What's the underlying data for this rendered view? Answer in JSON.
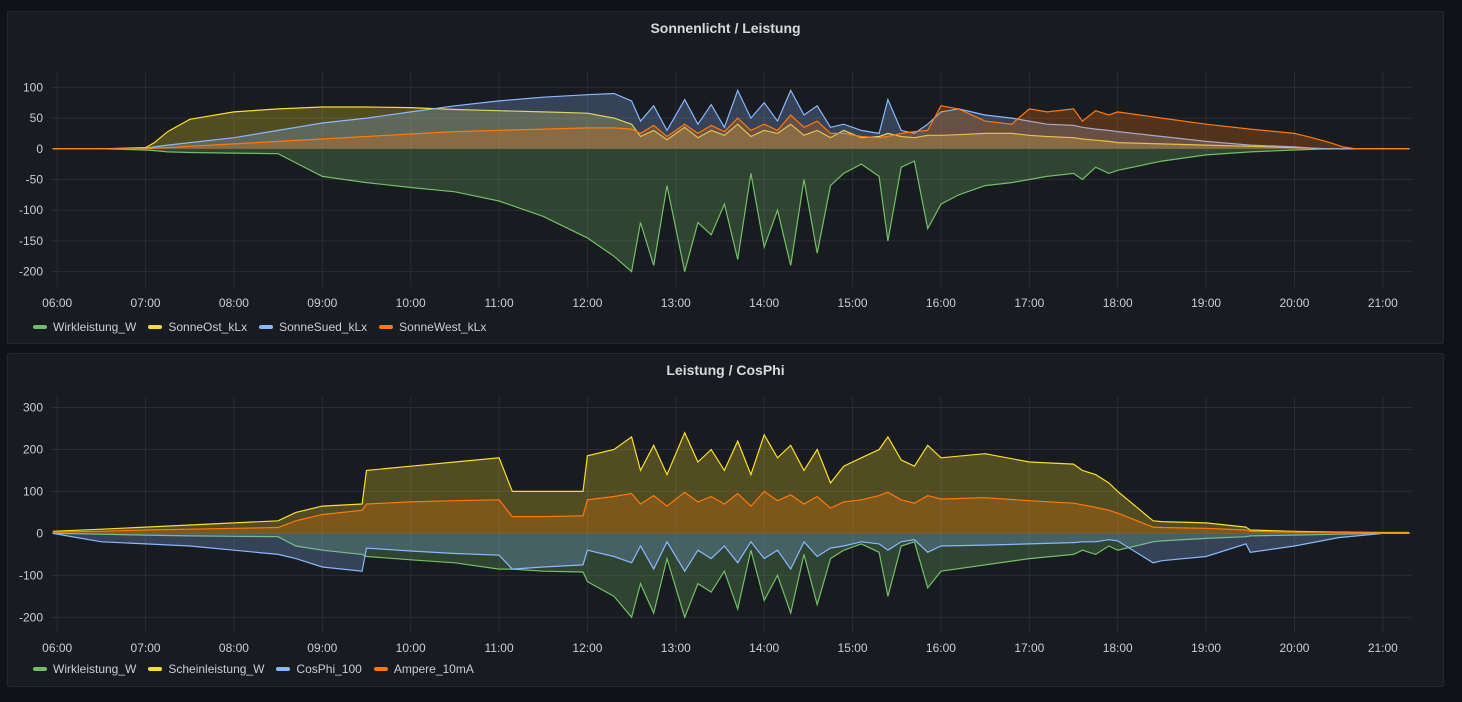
{
  "colors": {
    "green": "#73bf69",
    "yellow": "#fade2a",
    "blue": "#8ab8ff",
    "orange": "#ff780a",
    "grid": "#2a2d33",
    "background": "#111217",
    "panel": "#181b1f"
  },
  "chart_data": [
    {
      "type": "area",
      "title": "Sonnenlicht / Leistung",
      "x_ticks": [
        "06:00",
        "07:00",
        "08:00",
        "09:00",
        "10:00",
        "11:00",
        "12:00",
        "13:00",
        "14:00",
        "15:00",
        "16:00",
        "17:00",
        "18:00",
        "19:00",
        "20:00",
        "21:00"
      ],
      "xlim": [
        5.93,
        21.33
      ],
      "y_ticks": [
        100,
        50,
        0,
        -50,
        -100,
        -150,
        -200
      ],
      "ylim": [
        -225,
        125
      ],
      "x": [
        5.95,
        6.5,
        7.0,
        7.1,
        7.25,
        7.5,
        8.0,
        8.5,
        9.0,
        9.5,
        10.0,
        10.5,
        11.0,
        11.5,
        12.0,
        12.3,
        12.5,
        12.6,
        12.75,
        12.9,
        13.1,
        13.25,
        13.4,
        13.55,
        13.7,
        13.85,
        14.0,
        14.15,
        14.3,
        14.45,
        14.6,
        14.75,
        14.9,
        15.1,
        15.3,
        15.4,
        15.55,
        15.7,
        15.85,
        16.0,
        16.2,
        16.5,
        16.8,
        17.0,
        17.2,
        17.5,
        17.6,
        17.75,
        17.9,
        18.0,
        18.5,
        19.0,
        19.5,
        20.0,
        20.2,
        20.4,
        20.55,
        20.7,
        21.0,
        21.3
      ],
      "series": [
        {
          "name": "Wirkleistung_W",
          "color": "#73bf69",
          "values": [
            0,
            0,
            -2,
            -3,
            -5,
            -6,
            -7,
            -8,
            -45,
            -55,
            -63,
            -70,
            -85,
            -110,
            -145,
            -175,
            -200,
            -120,
            -190,
            -60,
            -200,
            -120,
            -140,
            -90,
            -180,
            -40,
            -160,
            -100,
            -190,
            -50,
            -170,
            -60,
            -40,
            -25,
            -45,
            -150,
            -30,
            -20,
            -130,
            -90,
            -75,
            -60,
            -55,
            -50,
            -45,
            -40,
            -50,
            -30,
            -40,
            -35,
            -20,
            -10,
            -5,
            -2,
            -1,
            0,
            0,
            0,
            0,
            0
          ]
        },
        {
          "name": "SonneOst_kLx",
          "color": "#fade2a",
          "values": [
            0,
            0,
            2,
            10,
            28,
            48,
            60,
            65,
            68,
            68,
            67,
            64,
            62,
            60,
            58,
            50,
            40,
            20,
            30,
            15,
            35,
            18,
            30,
            22,
            40,
            20,
            30,
            25,
            40,
            22,
            30,
            18,
            30,
            18,
            20,
            25,
            20,
            18,
            22,
            22,
            23,
            25,
            25,
            22,
            20,
            18,
            16,
            14,
            12,
            10,
            8,
            6,
            4,
            2,
            1,
            0,
            0,
            0,
            0,
            0
          ]
        },
        {
          "name": "SonneSued_kLx",
          "color": "#8ab8ff",
          "values": [
            0,
            0,
            1,
            3,
            6,
            10,
            18,
            30,
            42,
            50,
            60,
            70,
            78,
            84,
            88,
            90,
            78,
            45,
            70,
            30,
            80,
            40,
            72,
            35,
            95,
            50,
            75,
            45,
            95,
            55,
            70,
            35,
            40,
            30,
            25,
            80,
            30,
            25,
            40,
            60,
            65,
            55,
            50,
            45,
            40,
            38,
            35,
            32,
            30,
            28,
            20,
            12,
            6,
            3,
            1,
            0,
            0,
            0,
            0,
            0
          ]
        },
        {
          "name": "SonneWest_kLx",
          "color": "#ff780a",
          "values": [
            0,
            0,
            0,
            1,
            2,
            4,
            8,
            12,
            16,
            20,
            24,
            28,
            30,
            32,
            34,
            34,
            32,
            25,
            38,
            20,
            40,
            25,
            38,
            28,
            50,
            30,
            40,
            30,
            55,
            35,
            45,
            25,
            25,
            20,
            18,
            20,
            25,
            28,
            30,
            70,
            65,
            45,
            40,
            65,
            60,
            65,
            45,
            62,
            55,
            60,
            50,
            40,
            32,
            25,
            18,
            10,
            3,
            0,
            0,
            0
          ]
        }
      ]
    },
    {
      "type": "area",
      "title": "Leistung / CosPhi",
      "x_ticks": [
        "06:00",
        "07:00",
        "08:00",
        "09:00",
        "10:00",
        "11:00",
        "12:00",
        "13:00",
        "14:00",
        "15:00",
        "16:00",
        "17:00",
        "18:00",
        "19:00",
        "20:00",
        "21:00"
      ],
      "xlim": [
        5.93,
        21.33
      ],
      "y_ticks": [
        300,
        200,
        100,
        0,
        -100,
        -200
      ],
      "ylim": [
        -235,
        325
      ],
      "x": [
        5.95,
        6.5,
        7.0,
        7.5,
        8.0,
        8.5,
        8.7,
        9.0,
        9.45,
        9.5,
        10.0,
        10.5,
        11.0,
        11.15,
        11.5,
        11.95,
        12.0,
        12.3,
        12.5,
        12.6,
        12.75,
        12.9,
        13.1,
        13.25,
        13.4,
        13.55,
        13.7,
        13.85,
        14.0,
        14.15,
        14.3,
        14.45,
        14.6,
        14.75,
        14.9,
        15.1,
        15.3,
        15.4,
        15.55,
        15.7,
        15.85,
        16.0,
        16.5,
        17.0,
        17.5,
        17.6,
        17.75,
        17.9,
        18.0,
        18.4,
        18.5,
        19.0,
        19.45,
        19.5,
        20.0,
        20.5,
        21.0,
        21.3
      ],
      "series": [
        {
          "name": "Wirkleistung_W",
          "color": "#73bf69",
          "values": [
            0,
            -2,
            -4,
            -6,
            -7,
            -8,
            -30,
            -40,
            -50,
            -55,
            -63,
            -70,
            -85,
            -85,
            -90,
            -92,
            -115,
            -150,
            -200,
            -120,
            -190,
            -60,
            -200,
            -120,
            -140,
            -90,
            -180,
            -40,
            -160,
            -100,
            -190,
            -50,
            -170,
            -60,
            -40,
            -25,
            -45,
            -150,
            -30,
            -20,
            -130,
            -90,
            -75,
            -60,
            -50,
            -40,
            -50,
            -30,
            -40,
            -20,
            -18,
            -12,
            -8,
            -6,
            -4,
            -2,
            0,
            0
          ]
        },
        {
          "name": "Scheinleistung_W",
          "color": "#fade2a",
          "values": [
            5,
            10,
            15,
            20,
            25,
            30,
            50,
            65,
            70,
            150,
            160,
            170,
            180,
            100,
            100,
            100,
            185,
            200,
            230,
            150,
            210,
            140,
            240,
            170,
            200,
            150,
            220,
            140,
            235,
            180,
            210,
            150,
            200,
            120,
            160,
            180,
            200,
            230,
            175,
            160,
            210,
            180,
            190,
            170,
            165,
            150,
            140,
            120,
            100,
            30,
            28,
            25,
            15,
            8,
            5,
            3,
            2,
            2
          ]
        },
        {
          "name": "CosPhi_100",
          "color": "#8ab8ff",
          "values": [
            0,
            -20,
            -25,
            -30,
            -40,
            -50,
            -60,
            -80,
            -90,
            -35,
            -42,
            -48,
            -52,
            -85,
            -80,
            -75,
            -40,
            -55,
            -70,
            -30,
            -85,
            -20,
            -90,
            -40,
            -60,
            -30,
            -70,
            -20,
            -60,
            -40,
            -85,
            -20,
            -55,
            -35,
            -30,
            -20,
            -25,
            -40,
            -20,
            -15,
            -45,
            -30,
            -28,
            -25,
            -22,
            -20,
            -20,
            -15,
            -18,
            -70,
            -65,
            -55,
            -25,
            -45,
            -30,
            -10,
            0,
            0
          ]
        },
        {
          "name": "Ampere_10mA",
          "color": "#ff780a",
          "values": [
            3,
            5,
            8,
            10,
            12,
            14,
            30,
            45,
            55,
            70,
            75,
            78,
            80,
            40,
            40,
            42,
            80,
            88,
            95,
            70,
            90,
            65,
            98,
            75,
            88,
            70,
            95,
            65,
            100,
            78,
            92,
            70,
            88,
            60,
            75,
            80,
            90,
            98,
            80,
            72,
            90,
            82,
            85,
            78,
            72,
            68,
            62,
            55,
            48,
            15,
            14,
            12,
            8,
            5,
            3,
            2,
            1,
            1
          ]
        }
      ]
    }
  ]
}
